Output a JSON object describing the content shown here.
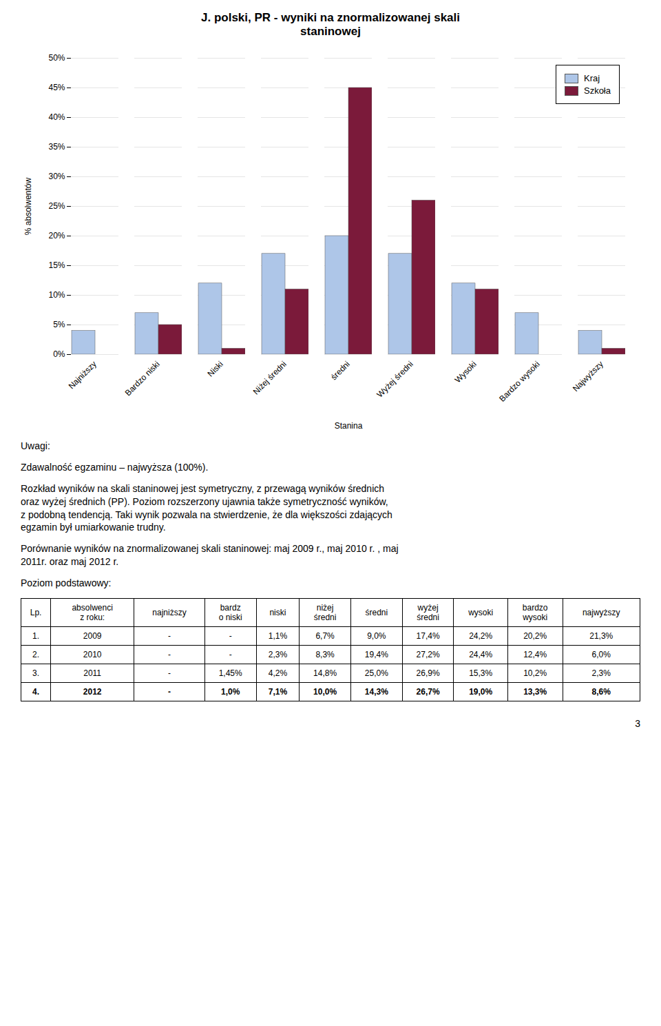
{
  "chart_data": {
    "type": "bar",
    "title": "J. polski, PR - wyniki na znormalizowanej skali\nstaninowej",
    "categories": [
      "Najniższy",
      "Bardzo niski",
      "Niski",
      "Niżej średni",
      "średni",
      "Wyżej średni",
      "Wysoki",
      "Bardzo wysoki",
      "Najwyższy"
    ],
    "series": [
      {
        "name": "Kraj",
        "color": "#aec6e8",
        "values": [
          4,
          7,
          12,
          17,
          20,
          17,
          12,
          7,
          4
        ]
      },
      {
        "name": "Szkoła",
        "color": "#7b1a3a",
        "values": [
          0,
          5,
          1,
          11,
          45,
          26,
          11,
          0,
          1
        ]
      }
    ],
    "xlabel": "Stanina",
    "ylabel": "% absolwentów",
    "ylim": [
      0,
      50
    ],
    "yticks": [
      {
        "value": 0,
        "label": "0%"
      },
      {
        "value": 5,
        "label": "5%"
      },
      {
        "value": 10,
        "label": "10%"
      },
      {
        "value": 15,
        "label": "15%"
      },
      {
        "value": 20,
        "label": "20%"
      },
      {
        "value": 25,
        "label": "25%"
      },
      {
        "value": 30,
        "label": "30%"
      },
      {
        "value": 35,
        "label": "35%"
      },
      {
        "value": 40,
        "label": "40%"
      },
      {
        "value": 45,
        "label": "45%"
      },
      {
        "value": 50,
        "label": "50%"
      }
    ],
    "grid": true,
    "legend": "upper right"
  },
  "notes": [
    [
      "Uwagi:"
    ],
    [
      "Zdawalność egzaminu – najwyższa (100%)."
    ],
    [
      "Rozkład wyników na skali staninowej jest symetryczny, z przewagą wyników średnich",
      "oraz wyżej średnich (PP). Poziom rozszerzony ujawnia także symetryczność wyników,",
      "z podobną tendencją. Taki wynik pozwala na stwierdzenie, że dla większości zdających",
      "egzamin był umiarkowanie trudny."
    ],
    [
      "Porównanie wyników na znormalizowanej skali staninowej: maj 2009 r., maj 2010 r. , maj",
      "2011r. oraz maj 2012 r."
    ],
    [
      "Poziom podstawowy:"
    ]
  ],
  "table": {
    "headers": [
      "Lp.",
      "absolwenci\nz roku:",
      "najniższy",
      "bardz\no niski",
      "niski",
      "niżej\nśredni",
      "średni",
      "wyżej\nśredni",
      "wysoki",
      "bardzo\nwysoki",
      "najwyższy"
    ],
    "rows": [
      [
        "1.",
        "2009",
        "-",
        "-",
        "1,1%",
        "6,7%",
        "9,0%",
        "17,4%",
        "24,2%",
        "20,2%",
        "21,3%"
      ],
      [
        "2.",
        "2010",
        "-",
        "-",
        "2,3%",
        "8,3%",
        "19,4%",
        "27,2%",
        "24,4%",
        "12,4%",
        "6,0%"
      ],
      [
        "3.",
        "2011",
        "-",
        "1,45%",
        "4,2%",
        "14,8%",
        "25,0%",
        "26,9%",
        "15,3%",
        "10,2%",
        "2,3%"
      ],
      [
        "4.",
        "2012",
        "-",
        "1,0%",
        "7,1%",
        "10,0%",
        "14,3%",
        "26,7%",
        "19,0%",
        "13,3%",
        "8,6%"
      ]
    ]
  },
  "page_number": "3"
}
